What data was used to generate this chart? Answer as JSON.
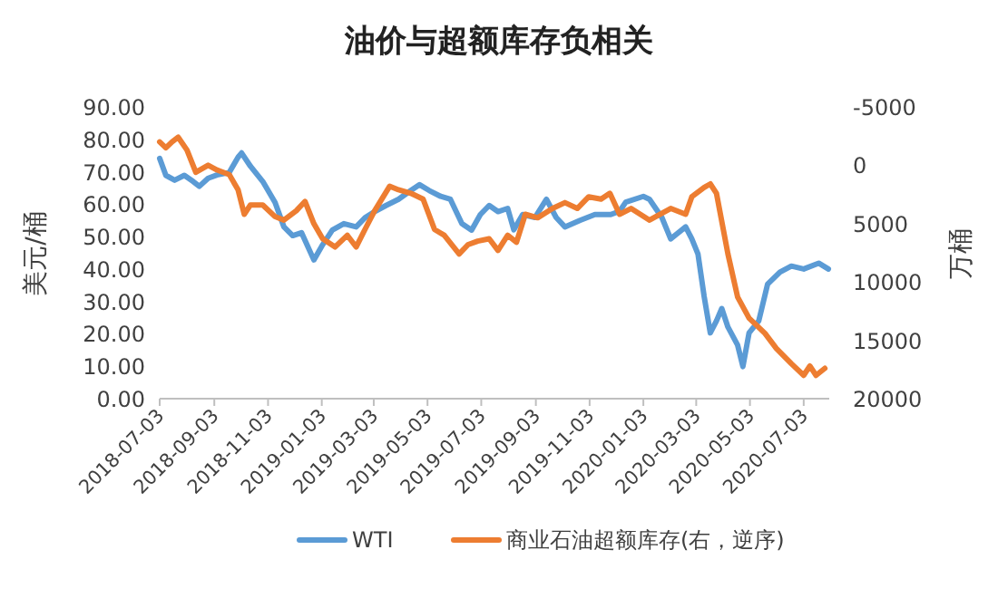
{
  "chart_data": {
    "type": "line",
    "title": "油价与超额库存负相关",
    "ylabel": "美元/桶",
    "y2label": "万桶",
    "xlim": [
      "2018-07-03",
      "2020-08-01"
    ],
    "xticks": [
      "2018-07-03",
      "2018-09-03",
      "2018-11-03",
      "2019-01-03",
      "2019-03-03",
      "2019-05-03",
      "2019-07-03",
      "2019-09-03",
      "2019-11-03",
      "2020-01-03",
      "2020-03-03",
      "2020-05-03",
      "2020-07-03"
    ],
    "ylim": [
      0,
      90
    ],
    "yticks": [
      {
        "value": 0,
        "label": "0.00"
      },
      {
        "value": 10,
        "label": "10.00"
      },
      {
        "value": 20,
        "label": "20.00"
      },
      {
        "value": 30,
        "label": "30.00"
      },
      {
        "value": 40,
        "label": "40.00"
      },
      {
        "value": 50,
        "label": "50.00"
      },
      {
        "value": 60,
        "label": "60.00"
      },
      {
        "value": 70,
        "label": "70.00"
      },
      {
        "value": 80,
        "label": "80.00"
      },
      {
        "value": 90,
        "label": "90.00"
      }
    ],
    "y2lim": [
      20000,
      -5000
    ],
    "y2ticks": [
      -5000,
      0,
      5000,
      10000,
      15000,
      20000
    ],
    "legend": "bottom",
    "grid": false,
    "series": [
      {
        "name": "WTI",
        "color": "#5b9bd5",
        "x": [
          "2018-07-03",
          "2018-07-10",
          "2018-07-20",
          "2018-07-31",
          "2018-08-10",
          "2018-08-17",
          "2018-08-27",
          "2018-09-06",
          "2018-09-20",
          "2018-09-30",
          "2018-10-04",
          "2018-10-14",
          "2018-10-28",
          "2018-11-11",
          "2018-11-21",
          "2018-12-01",
          "2018-12-11",
          "2018-12-25",
          "2019-01-04",
          "2019-01-15",
          "2019-01-28",
          "2019-02-11",
          "2019-02-21",
          "2019-03-04",
          "2019-03-17",
          "2019-03-31",
          "2019-04-14",
          "2019-04-24",
          "2019-05-05",
          "2019-05-18",
          "2019-05-29",
          "2019-06-11",
          "2019-06-22",
          "2019-07-02",
          "2019-07-12",
          "2019-07-22",
          "2019-08-02",
          "2019-08-09",
          "2019-08-19",
          "2019-09-02",
          "2019-09-15",
          "2019-09-26",
          "2019-10-06",
          "2019-10-23",
          "2019-11-09",
          "2019-11-27",
          "2019-12-07",
          "2019-12-14",
          "2020-01-03",
          "2020-01-10",
          "2020-01-24",
          "2020-02-03",
          "2020-02-20",
          "2020-02-27",
          "2020-03-05",
          "2020-03-12",
          "2020-03-19",
          "2020-03-26",
          "2020-04-01",
          "2020-04-08",
          "2020-04-19",
          "2020-04-25",
          "2020-05-02",
          "2020-05-13",
          "2020-05-23",
          "2020-06-06",
          "2020-06-19",
          "2020-07-03",
          "2020-07-20",
          "2020-07-31"
        ],
        "values": [
          74.1,
          68.9,
          67.4,
          68.9,
          67.0,
          65.5,
          68.0,
          69.0,
          69.8,
          74.5,
          75.8,
          71.7,
          67.0,
          60.5,
          53.0,
          50.3,
          51.2,
          42.8,
          47.5,
          52.0,
          54.0,
          53.0,
          55.8,
          57.7,
          59.6,
          61.5,
          64.2,
          66.0,
          64.2,
          62.4,
          61.5,
          54.0,
          52.0,
          56.8,
          59.6,
          57.7,
          58.7,
          52.1,
          56.8,
          55.9,
          61.5,
          55.9,
          53.0,
          55.0,
          56.8,
          56.8,
          57.8,
          60.6,
          62.4,
          61.5,
          55.9,
          49.3,
          53.0,
          49.3,
          44.6,
          31.5,
          20.3,
          24.0,
          27.8,
          22.1,
          16.5,
          9.9,
          20.3,
          24.0,
          35.3,
          39.0,
          40.9,
          40.0,
          41.8,
          40.0
        ]
      },
      {
        "name": "商业石油超额库存(右，逆序)",
        "color": "#ed7d31",
        "axis": "y2",
        "x": [
          "2018-07-03",
          "2018-07-10",
          "2018-07-17",
          "2018-07-24",
          "2018-08-03",
          "2018-08-13",
          "2018-08-27",
          "2018-09-06",
          "2018-09-20",
          "2018-09-30",
          "2018-10-07",
          "2018-10-14",
          "2018-10-28",
          "2018-11-11",
          "2018-11-21",
          "2018-12-05",
          "2018-12-15",
          "2018-12-25",
          "2019-01-04",
          "2019-01-18",
          "2019-02-01",
          "2019-02-11",
          "2019-02-21",
          "2019-03-04",
          "2019-03-21",
          "2019-03-31",
          "2019-04-14",
          "2019-04-28",
          "2019-05-11",
          "2019-05-22",
          "2019-06-08",
          "2019-06-18",
          "2019-06-29",
          "2019-07-12",
          "2019-07-22",
          "2019-08-02",
          "2019-08-12",
          "2019-08-22",
          "2019-09-05",
          "2019-09-22",
          "2019-10-06",
          "2019-10-20",
          "2019-11-02",
          "2019-11-16",
          "2019-11-26",
          "2019-12-07",
          "2019-12-20",
          "2020-01-10",
          "2020-02-03",
          "2020-02-20",
          "2020-02-27",
          "2020-03-12",
          "2020-03-19",
          "2020-03-26",
          "2020-04-08",
          "2020-04-19",
          "2020-05-02",
          "2020-05-20",
          "2020-06-02",
          "2020-06-19",
          "2020-07-03",
          "2020-07-10",
          "2020-07-17",
          "2020-07-27"
        ],
        "values": [
          -2000,
          -1500,
          -2000,
          -2400,
          -1300,
          600,
          0,
          400,
          800,
          2100,
          4200,
          3400,
          3400,
          4400,
          4700,
          3900,
          3100,
          5000,
          6300,
          7000,
          6000,
          7000,
          5500,
          3900,
          1800,
          2100,
          2400,
          2900,
          5500,
          6000,
          7600,
          6800,
          6500,
          6300,
          7300,
          6000,
          6600,
          4200,
          4500,
          3700,
          3200,
          3700,
          2700,
          2900,
          2400,
          4200,
          3700,
          4700,
          3700,
          4200,
          2700,
          1900,
          1600,
          2400,
          7600,
          11300,
          13100,
          14400,
          15700,
          17000,
          18000,
          17200,
          18000,
          17400
        ]
      }
    ]
  }
}
